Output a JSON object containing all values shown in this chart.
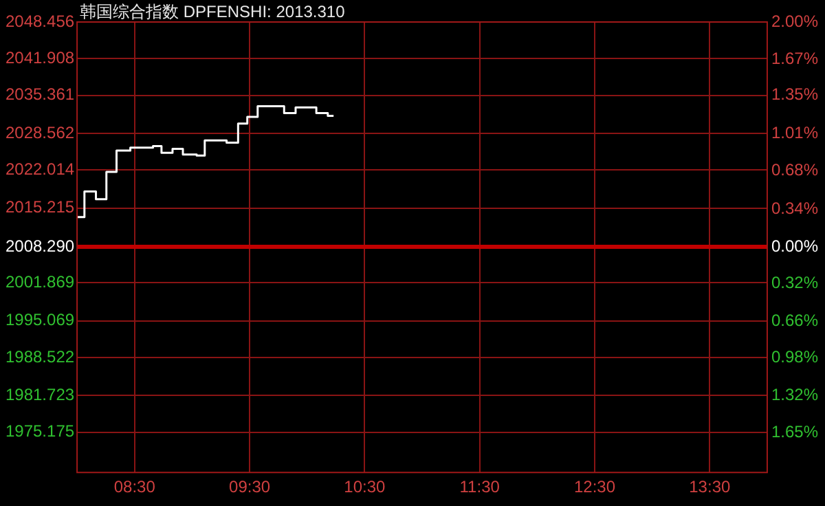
{
  "chart_data": {
    "type": "step",
    "title": "韩国综合指数 DPFENSHI: 2013.310",
    "x": [
      8.0,
      8.064,
      8.164,
      8.255,
      8.343,
      8.463,
      8.66,
      8.734,
      8.83,
      8.92,
      9.04,
      9.11,
      9.3,
      9.4,
      9.48,
      9.57,
      9.8,
      9.9,
      10.08,
      10.18,
      10.23
    ],
    "series": [
      {
        "color": "#ffffff",
        "values": [
          2013.6,
          2018.2,
          2016.8,
          2021.7,
          2025.5,
          2026.0,
          2026.3,
          2025.1,
          2025.8,
          2024.8,
          2024.6,
          2027.3,
          2026.9,
          2030.3,
          2031.5,
          2033.4,
          2032.2,
          2033.2,
          2032.2,
          2031.7,
          2031.7
        ]
      }
    ],
    "xlim": [
      8,
      14
    ],
    "xticks": [
      {
        "value": 8.5,
        "label": "08:30"
      },
      {
        "value": 9.5,
        "label": "09:30"
      },
      {
        "value": 10.5,
        "label": "10:30"
      },
      {
        "value": 11.5,
        "label": "11:30"
      },
      {
        "value": 12.5,
        "label": "12:30"
      },
      {
        "value": 13.5,
        "label": "13:30"
      }
    ],
    "ylim": [
      1968,
      2048.456
    ],
    "yticks": [
      2048.456,
      2041.908,
      2035.361,
      2028.562,
      2022.014,
      2015.215,
      {
        "value": 2008.29,
        "label": "2008.290"
      },
      2001.869,
      1995.069,
      1988.522,
      1981.723,
      1975.175
    ],
    "y2lim": [
      -2.0,
      2.0
    ],
    "y2ticks": [
      {
        "value": 2.0,
        "label": "2.00%"
      },
      {
        "value": 1.67,
        "label": "1.67%"
      },
      {
        "value": 1.35,
        "label": "1.35%"
      },
      {
        "value": 1.01,
        "label": "1.01%"
      },
      {
        "value": 0.68,
        "label": "0.68%"
      },
      {
        "value": 0.34,
        "label": "0.34%"
      },
      {
        "value": 0,
        "label": "0.00%"
      },
      {
        "value": -0.32,
        "label": "0.32%"
      },
      {
        "value": -0.66,
        "label": "0.66%"
      },
      {
        "value": -0.98,
        "label": "0.98%"
      },
      {
        "value": -1.32,
        "label": "1.32%"
      },
      {
        "value": -1.65,
        "label": "1.65%"
      }
    ],
    "ref_lines": [
      {
        "axis": "y",
        "value": 2008.29,
        "color": "#c00000"
      }
    ],
    "grid": true,
    "legend": false,
    "marker": "none",
    "line_style": "solid"
  }
}
